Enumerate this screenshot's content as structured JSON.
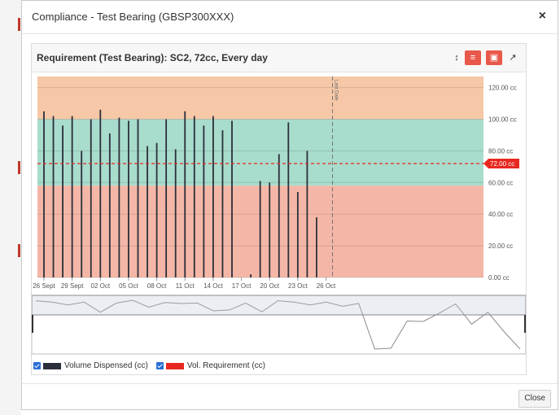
{
  "modal": {
    "title": "Compliance - Test Bearing (GBSP300XXX)",
    "close_symbol": "×",
    "close_button": "Close"
  },
  "panel": {
    "title": "Requirement (Test Bearing): SC2, 72cc, Every day",
    "toolbar": [
      {
        "name": "sort-icon",
        "glyph": "↕",
        "style": "plain"
      },
      {
        "name": "toggle-bars-icon",
        "glyph": "≡",
        "style": "red"
      },
      {
        "name": "bar-chart-icon",
        "glyph": "▣",
        "style": "red"
      },
      {
        "name": "line-chart-icon",
        "glyph": "↗",
        "style": "plain"
      }
    ]
  },
  "legend": [
    {
      "label": "Volume Dispensed (cc)",
      "color": "#2b2f3a"
    },
    {
      "label": "Vol. Requirement (cc)",
      "color": "#e8281f"
    }
  ],
  "chart_data": {
    "type": "bar",
    "x_ticks": [
      "26 Sept",
      "29 Sept",
      "02 Oct",
      "05 Oct",
      "08 Oct",
      "11 Oct",
      "14 Oct",
      "17 Oct",
      "20 Oct",
      "23 Oct",
      "26 Oct"
    ],
    "y_ticks": [
      "0.00 cc",
      "20.00 cc",
      "40.00 cc",
      "60.00 cc",
      "80.00 cc",
      "100.00 cc",
      "120.00 cc"
    ],
    "ylim": [
      0,
      127
    ],
    "series": [
      {
        "name": "Volume Dispensed (cc)",
        "values": [
          105,
          102,
          96,
          102,
          80,
          100,
          106,
          91,
          101,
          99,
          100,
          83,
          85,
          100,
          81,
          105,
          102,
          96,
          102,
          93,
          99,
          0,
          2,
          61,
          60,
          78,
          98,
          54,
          80,
          38
        ]
      }
    ],
    "requirement": {
      "value": 72,
      "label": "72.00 cc",
      "color": "#e8281f"
    },
    "bands": [
      {
        "from": 100,
        "to": 127,
        "color": "#f6c8a8"
      },
      {
        "from": 58,
        "to": 100,
        "color": "#a8dccd"
      },
      {
        "from": 0,
        "to": 58,
        "color": "#f4b7a7"
      }
    ],
    "today_marker": {
      "label": "Last Date",
      "index": 30
    },
    "navigator": [
      105,
      102,
      96,
      102,
      80,
      100,
      106,
      91,
      101,
      99,
      100,
      83,
      85,
      100,
      81,
      105,
      102,
      96,
      102,
      93,
      99,
      0,
      2,
      61,
      60,
      78,
      98,
      54,
      80,
      38,
      0
    ],
    "grid": true
  }
}
